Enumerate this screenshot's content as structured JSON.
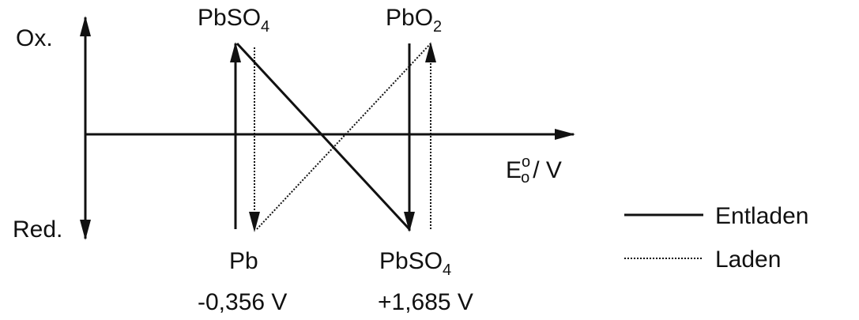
{
  "axis": {
    "top": "Ox.",
    "bottom": "Red.",
    "x_label": {
      "base": "E",
      "sup": "o",
      "sub": "o",
      "rest": "/ V"
    }
  },
  "nodes": [
    {
      "label": {
        "base": "PbSO",
        "sub": "4"
      }
    },
    {
      "label": {
        "base": "PbO",
        "sub": "2"
      }
    },
    {
      "label": {
        "base": "Pb"
      },
      "potential": "-0,356 V"
    },
    {
      "label": {
        "base": "PbSO",
        "sub": "4"
      },
      "potential": "+1,685 V"
    }
  ],
  "legend": [
    "Entladen",
    "Laden"
  ]
}
